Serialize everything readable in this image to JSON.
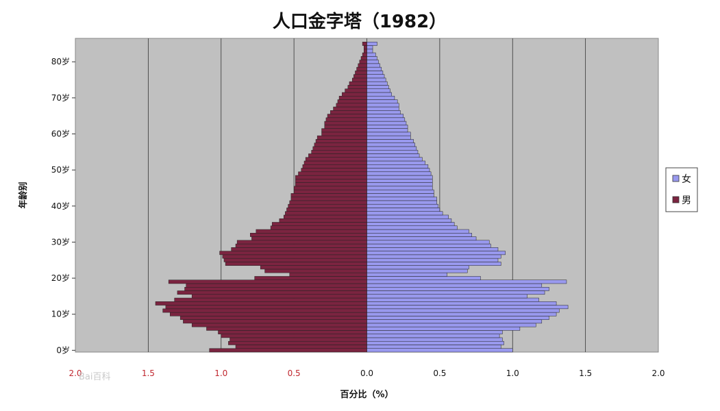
{
  "chart_data": {
    "type": "bar",
    "orientation": "horizontal",
    "title": "人口金字塔（1982）",
    "xlabel": "百分比（%）",
    "ylabel": "年龄别",
    "xlim": [
      -2.0,
      2.0
    ],
    "ylim": [
      0,
      86
    ],
    "x_ticks": [
      {
        "value": -2.0,
        "label": "2.0"
      },
      {
        "value": -1.5,
        "label": "1.5"
      },
      {
        "value": -1.0,
        "label": "1.0"
      },
      {
        "value": -0.5,
        "label": "0.5"
      },
      {
        "value": 0.0,
        "label": "0.0"
      },
      {
        "value": 0.5,
        "label": "0.5"
      },
      {
        "value": 1.0,
        "label": "1.0"
      },
      {
        "value": 1.5,
        "label": "1.5"
      },
      {
        "value": 2.0,
        "label": "2.0"
      }
    ],
    "y_ticks": [
      {
        "value": 0,
        "label": "0岁"
      },
      {
        "value": 10,
        "label": "10岁"
      },
      {
        "value": 20,
        "label": "20岁"
      },
      {
        "value": 30,
        "label": "30岁"
      },
      {
        "value": 40,
        "label": "40岁"
      },
      {
        "value": 50,
        "label": "50岁"
      },
      {
        "value": 60,
        "label": "60岁"
      },
      {
        "value": 70,
        "label": "70岁"
      },
      {
        "value": 80,
        "label": "80岁"
      }
    ],
    "ages": [
      0,
      1,
      2,
      3,
      4,
      5,
      6,
      7,
      8,
      9,
      10,
      11,
      12,
      13,
      14,
      15,
      16,
      17,
      18,
      19,
      20,
      21,
      22,
      23,
      24,
      25,
      26,
      27,
      28,
      29,
      30,
      31,
      32,
      33,
      34,
      35,
      36,
      37,
      38,
      39,
      40,
      41,
      42,
      43,
      44,
      45,
      46,
      47,
      48,
      49,
      50,
      51,
      52,
      53,
      54,
      55,
      56,
      57,
      58,
      59,
      60,
      61,
      62,
      63,
      64,
      65,
      66,
      67,
      68,
      69,
      70,
      71,
      72,
      73,
      74,
      75,
      76,
      77,
      78,
      79,
      80,
      81,
      82,
      83,
      84,
      85
    ],
    "series": [
      {
        "name": "女",
        "color": "#9999ee",
        "values": [
          1.0,
          0.92,
          0.94,
          0.93,
          0.91,
          0.93,
          1.05,
          1.16,
          1.2,
          1.25,
          1.3,
          1.32,
          1.38,
          1.3,
          1.18,
          1.1,
          1.22,
          1.25,
          1.2,
          1.37,
          0.78,
          0.55,
          0.69,
          0.7,
          0.92,
          0.9,
          0.92,
          0.95,
          0.9,
          0.85,
          0.84,
          0.75,
          0.72,
          0.7,
          0.62,
          0.6,
          0.58,
          0.56,
          0.52,
          0.5,
          0.49,
          0.48,
          0.48,
          0.46,
          0.46,
          0.45,
          0.45,
          0.45,
          0.45,
          0.44,
          0.43,
          0.42,
          0.4,
          0.38,
          0.36,
          0.35,
          0.34,
          0.33,
          0.32,
          0.3,
          0.3,
          0.28,
          0.28,
          0.27,
          0.26,
          0.25,
          0.23,
          0.22,
          0.22,
          0.21,
          0.19,
          0.17,
          0.16,
          0.15,
          0.14,
          0.13,
          0.12,
          0.11,
          0.1,
          0.09,
          0.08,
          0.07,
          0.06,
          0.04,
          0.04,
          0.07
        ]
      },
      {
        "name": "男",
        "color": "#7b2440",
        "values": [
          1.08,
          0.9,
          0.95,
          0.94,
          1.0,
          1.02,
          1.1,
          1.2,
          1.26,
          1.28,
          1.35,
          1.4,
          1.38,
          1.45,
          1.32,
          1.2,
          1.3,
          1.25,
          1.24,
          1.36,
          0.77,
          0.53,
          0.7,
          0.73,
          0.97,
          0.98,
          0.99,
          1.01,
          0.93,
          0.9,
          0.89,
          0.79,
          0.8,
          0.76,
          0.66,
          0.65,
          0.6,
          0.57,
          0.56,
          0.55,
          0.54,
          0.53,
          0.52,
          0.52,
          0.5,
          0.5,
          0.49,
          0.49,
          0.49,
          0.47,
          0.45,
          0.44,
          0.43,
          0.42,
          0.4,
          0.38,
          0.37,
          0.36,
          0.35,
          0.34,
          0.31,
          0.31,
          0.29,
          0.29,
          0.28,
          0.27,
          0.25,
          0.23,
          0.21,
          0.2,
          0.19,
          0.17,
          0.15,
          0.13,
          0.12,
          0.1,
          0.09,
          0.08,
          0.07,
          0.06,
          0.05,
          0.04,
          0.03,
          0.02,
          0.02,
          0.03
        ]
      }
    ],
    "legend": {
      "placement": "right",
      "items": [
        {
          "label": "女",
          "color": "#9999ee"
        },
        {
          "label": "男",
          "color": "#7b2440"
        }
      ]
    },
    "grid": true,
    "plot_background": "#c0c0c0",
    "negative_tick_color": "#c0262e"
  },
  "watermark": {
    "text": "Bai百科"
  }
}
